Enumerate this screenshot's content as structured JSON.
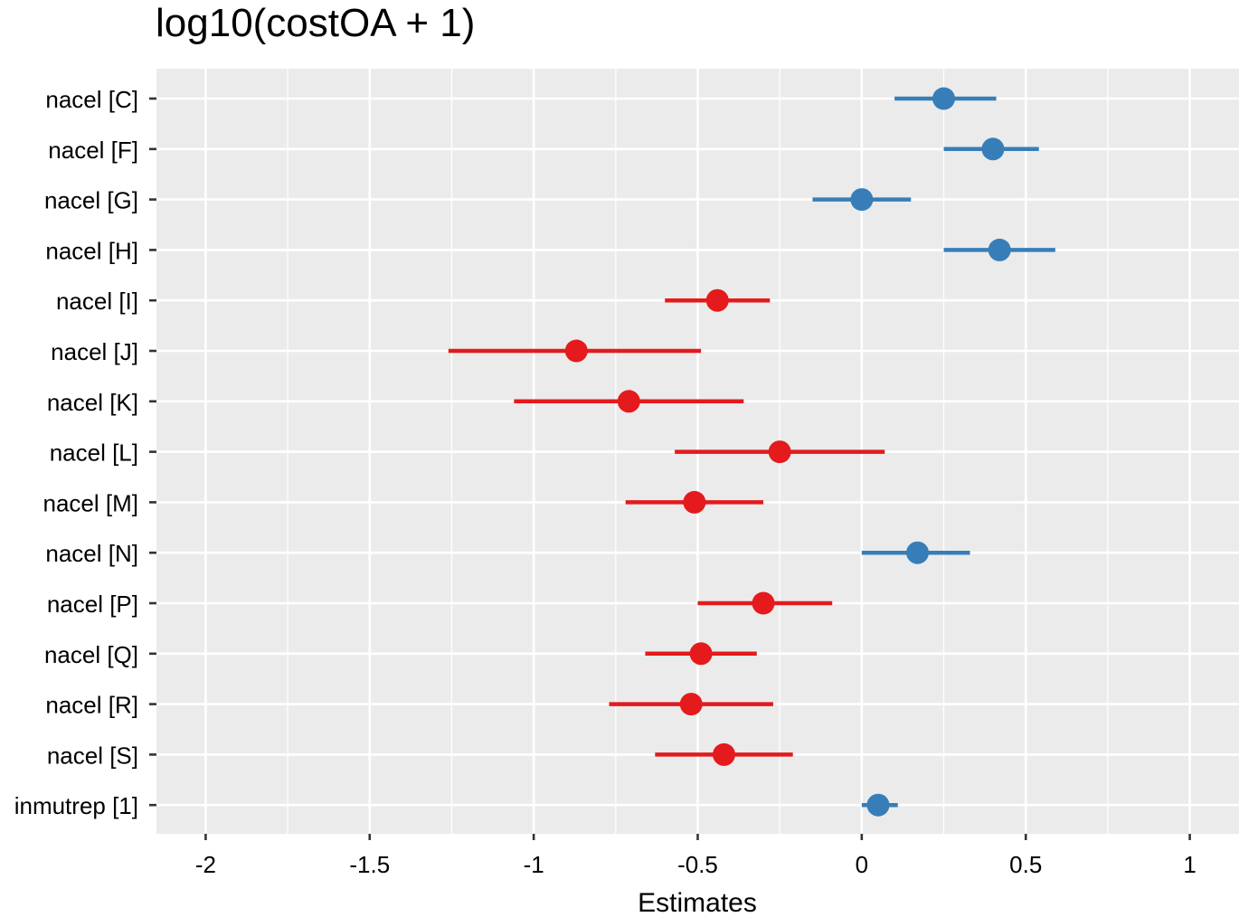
{
  "chart_data": {
    "type": "forest",
    "title": "log10(costOA + 1)",
    "xlabel": "Estimates",
    "ylabel": "",
    "xlim": [
      -2.15,
      1.15
    ],
    "xticks": [
      -2,
      -1.5,
      -1,
      -0.5,
      0,
      0.5,
      1
    ],
    "xtick_labels": [
      "-2",
      "-1.5",
      "-1",
      "-0.5",
      "0",
      "0.5",
      "1"
    ],
    "grid": true,
    "colors": {
      "positive": "#377EB8",
      "negative": "#E41A1C",
      "panel": "#EBEBEB",
      "grid": "#FFFFFF"
    },
    "terms": [
      {
        "label": "nacel [C]",
        "estimate": 0.25,
        "ci_low": 0.1,
        "ci_high": 0.41
      },
      {
        "label": "nacel [F]",
        "estimate": 0.4,
        "ci_low": 0.25,
        "ci_high": 0.54
      },
      {
        "label": "nacel [G]",
        "estimate": 0.0,
        "ci_low": -0.15,
        "ci_high": 0.15
      },
      {
        "label": "nacel [H]",
        "estimate": 0.42,
        "ci_low": 0.25,
        "ci_high": 0.59
      },
      {
        "label": "nacel [I]",
        "estimate": -0.44,
        "ci_low": -0.6,
        "ci_high": -0.28
      },
      {
        "label": "nacel [J]",
        "estimate": -0.87,
        "ci_low": -1.26,
        "ci_high": -0.49
      },
      {
        "label": "nacel [K]",
        "estimate": -0.71,
        "ci_low": -1.06,
        "ci_high": -0.36
      },
      {
        "label": "nacel [L]",
        "estimate": -0.25,
        "ci_low": -0.57,
        "ci_high": 0.07
      },
      {
        "label": "nacel [M]",
        "estimate": -0.51,
        "ci_low": -0.72,
        "ci_high": -0.3
      },
      {
        "label": "nacel [N]",
        "estimate": 0.17,
        "ci_low": 0.0,
        "ci_high": 0.33
      },
      {
        "label": "nacel [P]",
        "estimate": -0.3,
        "ci_low": -0.5,
        "ci_high": -0.09
      },
      {
        "label": "nacel [Q]",
        "estimate": -0.49,
        "ci_low": -0.66,
        "ci_high": -0.32
      },
      {
        "label": "nacel [R]",
        "estimate": -0.52,
        "ci_low": -0.77,
        "ci_high": -0.27
      },
      {
        "label": "nacel [S]",
        "estimate": -0.42,
        "ci_low": -0.63,
        "ci_high": -0.21
      },
      {
        "label": "inmutrep [1]",
        "estimate": 0.05,
        "ci_low": 0.0,
        "ci_high": 0.11
      }
    ]
  }
}
